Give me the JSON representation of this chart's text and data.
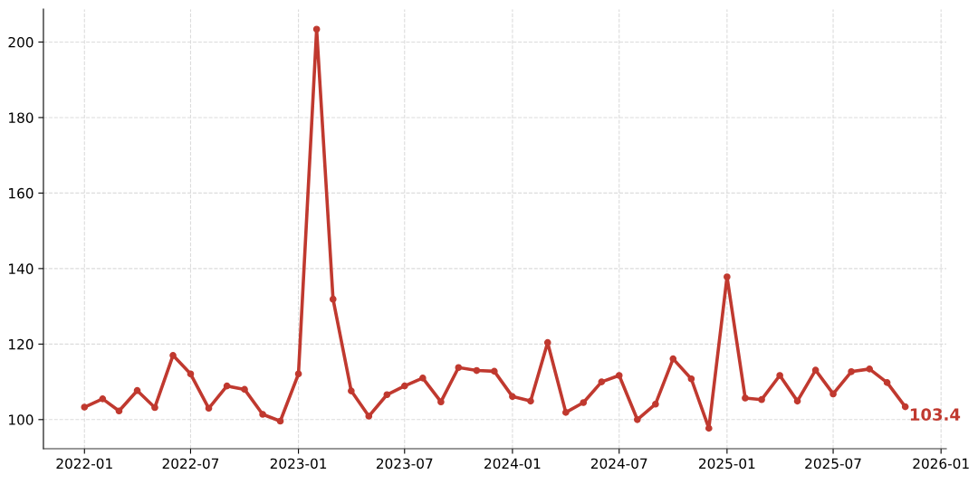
{
  "chart_data": {
    "type": "line",
    "x": [
      "2022-01",
      "2022-02",
      "2022-03",
      "2022-04",
      "2022-05",
      "2022-06",
      "2022-07",
      "2022-08",
      "2022-09",
      "2022-10",
      "2022-11",
      "2022-12",
      "2023-01",
      "2023-02",
      "2023-03",
      "2023-04",
      "2023-05",
      "2023-06",
      "2023-07",
      "2023-08",
      "2023-09",
      "2023-10",
      "2023-11",
      "2023-12",
      "2024-01",
      "2024-02",
      "2024-03",
      "2024-04",
      "2024-05",
      "2024-06",
      "2024-07",
      "2024-08",
      "2024-09",
      "2024-10",
      "2024-11",
      "2024-12",
      "2025-01",
      "2025-02",
      "2025-03",
      "2025-04",
      "2025-05",
      "2025-06",
      "2025-07",
      "2025-08",
      "2025-09",
      "2025-10",
      "2025-11"
    ],
    "series": [
      {
        "color": "#c0392f",
        "values": [
          103.3,
          105.5,
          102.3,
          107.7,
          103.2,
          117.0,
          112.1,
          103.0,
          108.9,
          108.0,
          101.4,
          99.6,
          112.1,
          203.4,
          131.9,
          107.6,
          100.9,
          106.6,
          108.9,
          111.0,
          104.7,
          113.8,
          113.0,
          112.8,
          106.1,
          104.9,
          120.4,
          101.9,
          104.5,
          110.0,
          111.7,
          100.0,
          104.1,
          116.1,
          110.8,
          97.7,
          137.8,
          105.7,
          105.3,
          111.7,
          104.9,
          113.1,
          106.8,
          112.7,
          113.4,
          109.8,
          103.4
        ]
      }
    ],
    "xlim": [
      "2021-10-23",
      "2026-01-10"
    ],
    "ylim": [
      92.3,
      208.7
    ],
    "xticks": [
      "2022-01",
      "2022-07",
      "2023-01",
      "2023-07",
      "2024-01",
      "2024-07",
      "2025-01",
      "2025-07",
      "2026-01"
    ],
    "yticks": [
      100,
      120,
      140,
      160,
      180,
      200
    ],
    "grid": true,
    "marker": "circle",
    "line_style": "solid",
    "annotations": [
      {
        "text": "103.4",
        "x": "2025-11",
        "y": 103.4
      }
    ]
  }
}
